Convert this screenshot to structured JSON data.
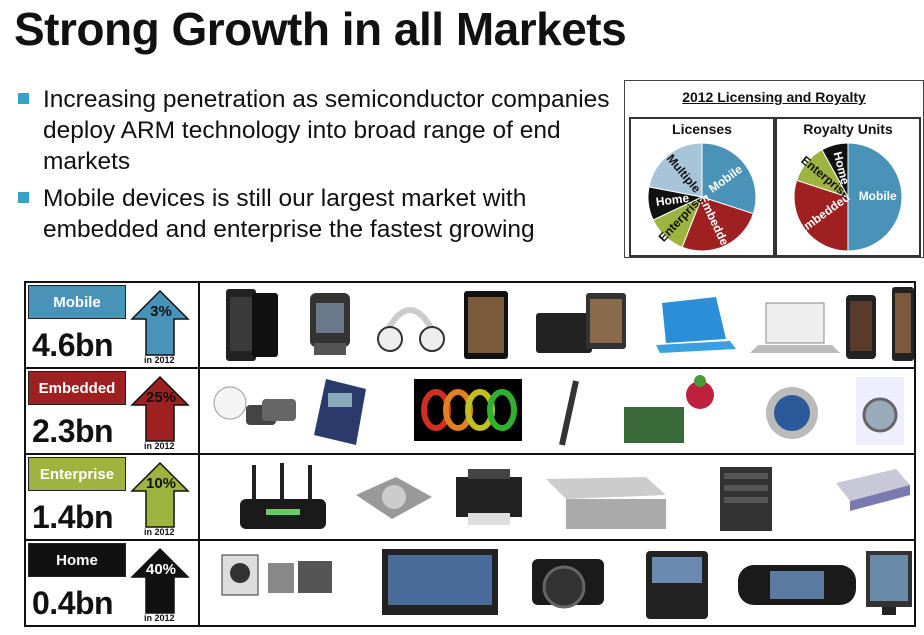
{
  "title": "Strong Growth in all Markets",
  "bullets": [
    "Increasing penetration as semiconductor companies deploy ARM technology into broad range of end markets",
    "Mobile devices is still our largest market with embedded and enterprise the fastest growing"
  ],
  "inset": {
    "title": "2012 Licensing and Royalty",
    "licenses": {
      "title": "Licenses",
      "slices": [
        {
          "label": "Mobile",
          "share": 0.3,
          "color": "#4a93b8"
        },
        {
          "label": "Embedded",
          "share": 0.26,
          "color": "#9e2020"
        },
        {
          "label": "Enterprise",
          "share": 0.12,
          "color": "#9fb340"
        },
        {
          "label": "Home",
          "share": 0.1,
          "color": "#111111"
        },
        {
          "label": "Multiple",
          "share": 0.22,
          "color": "#a8c4d8"
        }
      ]
    },
    "royalty": {
      "title": "Royalty Units",
      "slices": [
        {
          "label": "Mobile",
          "share": 0.5,
          "color": "#4a93b8"
        },
        {
          "label": "Embedded",
          "share": 0.3,
          "color": "#9e2020"
        },
        {
          "label": "Enterprise",
          "share": 0.12,
          "color": "#9fb340"
        },
        {
          "label": "Home",
          "share": 0.08,
          "color": "#111111"
        }
      ]
    }
  },
  "markets": [
    {
      "label": "Mobile",
      "value": "4.6bn",
      "growth": "3%",
      "year": "in 2012",
      "color": "#4a93b8",
      "arrow_color": "#4a93b8"
    },
    {
      "label": "Embedded",
      "value": "2.3bn",
      "growth": "25%",
      "year": "in 2012",
      "color": "#9e2020",
      "arrow_color": "#9e2020"
    },
    {
      "label": "Enterprise",
      "value": "1.4bn",
      "growth": "10%",
      "year": "in 2012",
      "color": "#9fb340",
      "arrow_color": "#9fb340"
    },
    {
      "label": "Home",
      "value": "0.4bn",
      "growth": "40%",
      "year": "in 2012",
      "color": "#111111",
      "arrow_color": "#111111"
    }
  ]
}
